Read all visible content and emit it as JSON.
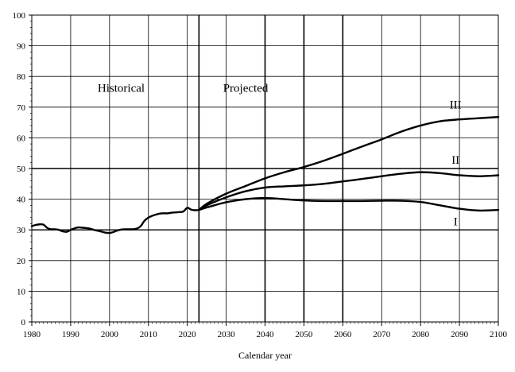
{
  "chart_data": {
    "type": "line",
    "title": "",
    "xlabel": "Calendar year",
    "ylabel": "",
    "xlim": [
      1980,
      2100
    ],
    "ylim": [
      0,
      100
    ],
    "x_ticks": [
      1980,
      1990,
      2000,
      2010,
      2020,
      2030,
      2040,
      2050,
      2060,
      2070,
      2080,
      2090,
      2100
    ],
    "y_ticks": [
      0,
      10,
      20,
      30,
      40,
      50,
      60,
      70,
      80,
      90,
      100
    ],
    "grid": "horizontal",
    "dividers": [
      2023,
      2040,
      2050,
      2060
    ],
    "region_labels": [
      {
        "text": "Historical",
        "x": 2003,
        "y": 75
      },
      {
        "text": "Projected",
        "x": 2035,
        "y": 75
      }
    ],
    "series": [
      {
        "name": "Historical",
        "x": [
          1980,
          1981,
          1982,
          1983,
          1984,
          1985,
          1986,
          1987,
          1988,
          1989,
          1990,
          1991,
          1992,
          1993,
          1994,
          1995,
          1996,
          1997,
          1998,
          1999,
          2000,
          2001,
          2002,
          2003,
          2004,
          2005,
          2006,
          2007,
          2008,
          2009,
          2010,
          2011,
          2012,
          2013,
          2014,
          2015,
          2016,
          2017,
          2018,
          2019,
          2020,
          2021,
          2022,
          2023
        ],
        "y": [
          31.2,
          31.6,
          31.8,
          31.7,
          30.6,
          30.2,
          30.2,
          30.0,
          29.5,
          29.4,
          30.0,
          30.5,
          30.8,
          30.7,
          30.6,
          30.4,
          30.0,
          29.7,
          29.4,
          29.1,
          29.0,
          29.3,
          29.8,
          30.1,
          30.2,
          30.2,
          30.2,
          30.4,
          31.2,
          33.0,
          34.0,
          34.6,
          35.0,
          35.3,
          35.4,
          35.4,
          35.6,
          35.7,
          35.8,
          36.0,
          37.2,
          36.6,
          36.4,
          36.5
        ]
      },
      {
        "name": "III",
        "x": [
          2023,
          2025,
          2030,
          2035,
          2040,
          2045,
          2050,
          2055,
          2060,
          2065,
          2070,
          2075,
          2080,
          2085,
          2090,
          2095,
          2100
        ],
        "y": [
          36.5,
          38.5,
          41.8,
          44.3,
          46.8,
          48.8,
          50.5,
          52.5,
          54.8,
          57.2,
          59.5,
          62.0,
          64.0,
          65.4,
          66.0,
          66.4,
          66.8
        ]
      },
      {
        "name": "II",
        "x": [
          2023,
          2025,
          2030,
          2035,
          2040,
          2045,
          2050,
          2055,
          2060,
          2065,
          2070,
          2075,
          2080,
          2085,
          2090,
          2095,
          2100
        ],
        "y": [
          36.5,
          38.0,
          40.6,
          42.6,
          43.8,
          44.2,
          44.5,
          45.0,
          45.8,
          46.6,
          47.5,
          48.3,
          48.8,
          48.5,
          47.8,
          47.5,
          47.8
        ]
      },
      {
        "name": "I",
        "x": [
          2023,
          2025,
          2030,
          2035,
          2040,
          2045,
          2050,
          2055,
          2060,
          2065,
          2070,
          2075,
          2080,
          2085,
          2090,
          2095,
          2100
        ],
        "y": [
          36.5,
          37.3,
          39.0,
          40.0,
          40.4,
          40.0,
          39.6,
          39.4,
          39.4,
          39.4,
          39.5,
          39.5,
          39.1,
          38.0,
          36.9,
          36.3,
          36.5
        ]
      }
    ],
    "series_labels": [
      {
        "text": "III",
        "x": 2089,
        "y": 69.5
      },
      {
        "text": "II",
        "x": 2089,
        "y": 51.5
      },
      {
        "text": "I",
        "x": 2089,
        "y": 31.5
      }
    ]
  }
}
